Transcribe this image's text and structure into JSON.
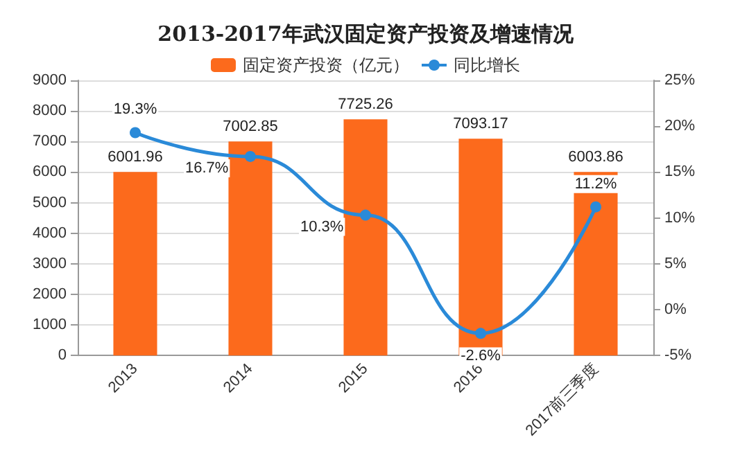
{
  "chart_data": {
    "type": "bar",
    "title": "2013-2017年武汉固定资产投资及增速情况",
    "categories": [
      "2013",
      "2014",
      "2015",
      "2016",
      "2017前三季度"
    ],
    "series": [
      {
        "name": "固定资产投资（亿元）",
        "color": "#fc6a1c",
        "values": [
          6001.96,
          7002.85,
          7725.26,
          7093.17,
          6003.86
        ]
      },
      {
        "name": "同比增长",
        "type": "line",
        "axis": "y2",
        "color": "#2a8ad8",
        "values": [
          19.3,
          16.7,
          10.3,
          -2.6,
          11.2
        ],
        "value_labels": [
          "19.3%",
          "16.7%",
          "10.3%",
          "-2.6%",
          "11.2%"
        ]
      }
    ],
    "ylim": [
      0,
      9000
    ],
    "yticks": [
      0,
      1000,
      2000,
      3000,
      4000,
      5000,
      6000,
      7000,
      8000,
      9000
    ],
    "y2lim": [
      -5,
      25
    ],
    "y2ticks": [
      {
        "value": -5,
        "label": "-5%"
      },
      {
        "value": 0,
        "label": "0%"
      },
      {
        "value": 5,
        "label": "5%"
      },
      {
        "value": 10,
        "label": "10%"
      },
      {
        "value": 15,
        "label": "15%"
      },
      {
        "value": 20,
        "label": "20%"
      },
      {
        "value": 25,
        "label": "25%"
      }
    ],
    "data_labels": true,
    "grid": "y",
    "legend": "top",
    "marker": "circle",
    "line_style": "solid"
  }
}
